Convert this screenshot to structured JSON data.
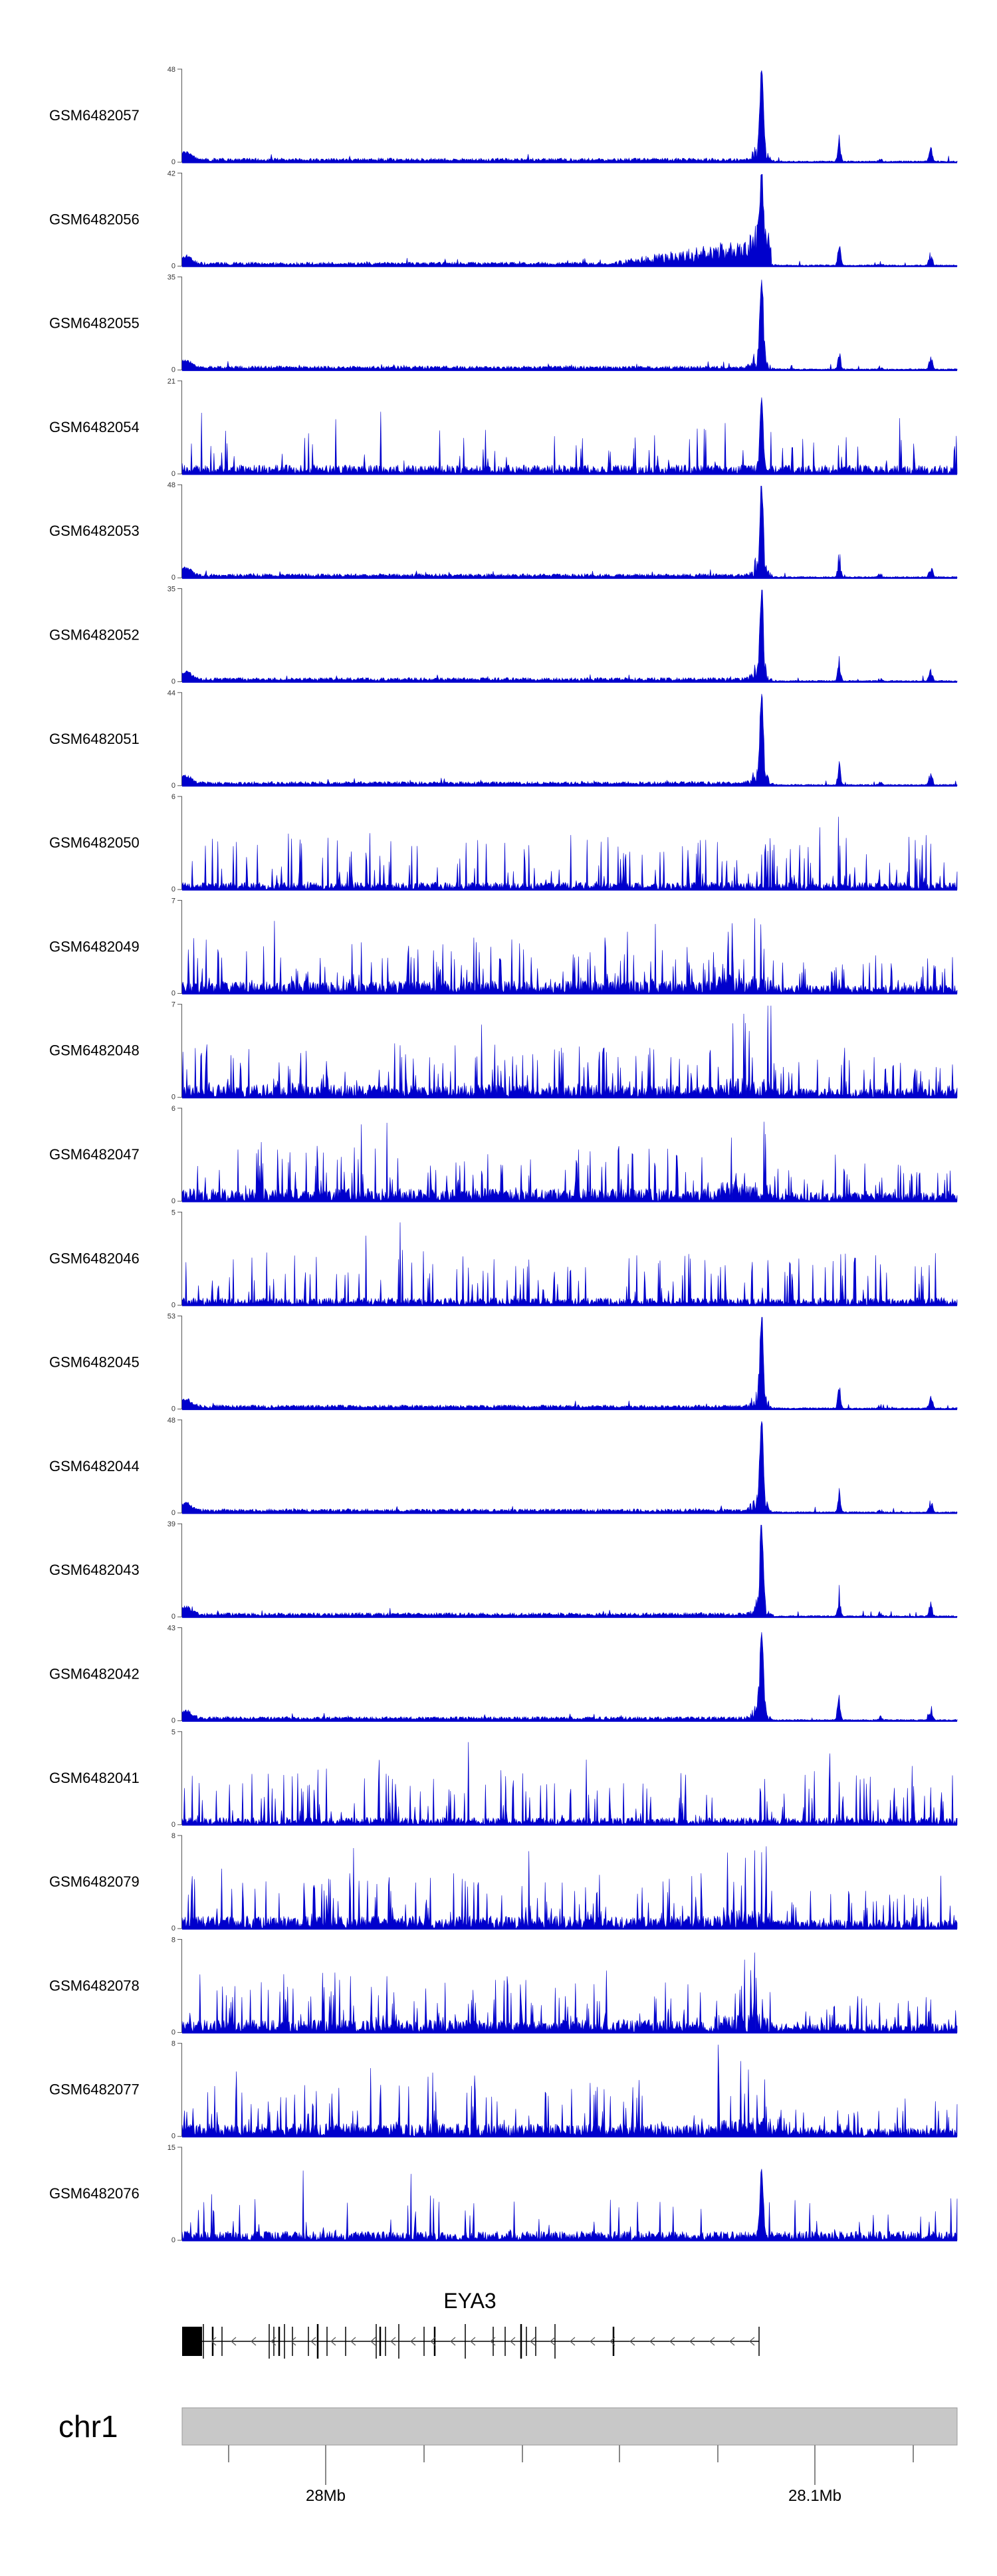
{
  "chart_data": {
    "type": "area",
    "track_color": "#0000cc",
    "ymin": 0,
    "tracks": [
      {
        "name": "GSM6482057",
        "ymax": 48,
        "profile": "peak_strong",
        "seed": 11
      },
      {
        "name": "GSM6482056",
        "ymax": 42,
        "profile": "peak_ramp",
        "seed": 12
      },
      {
        "name": "GSM6482055",
        "ymax": 35,
        "profile": "peak_strong",
        "seed": 13
      },
      {
        "name": "GSM6482054",
        "ymax": 21,
        "profile": "noisy_peak",
        "seed": 14
      },
      {
        "name": "GSM6482053",
        "ymax": 48,
        "profile": "peak_strong",
        "seed": 15
      },
      {
        "name": "GSM6482052",
        "ymax": 35,
        "profile": "peak_strong",
        "seed": 16
      },
      {
        "name": "GSM6482051",
        "ymax": 44,
        "profile": "peak_strong",
        "seed": 17
      },
      {
        "name": "GSM6482050",
        "ymax": 6,
        "profile": "noisy",
        "seed": 18
      },
      {
        "name": "GSM6482049",
        "ymax": 7,
        "profile": "noisy_dense",
        "seed": 19
      },
      {
        "name": "GSM6482048",
        "ymax": 7,
        "profile": "noisy_dense",
        "seed": 20
      },
      {
        "name": "GSM6482047",
        "ymax": 6,
        "profile": "noisy_dense",
        "seed": 21
      },
      {
        "name": "GSM6482046",
        "ymax": 5,
        "profile": "noisy",
        "seed": 22
      },
      {
        "name": "GSM6482045",
        "ymax": 53,
        "profile": "peak_strong",
        "seed": 23
      },
      {
        "name": "GSM6482044",
        "ymax": 48,
        "profile": "peak_strong",
        "seed": 24
      },
      {
        "name": "GSM6482043",
        "ymax": 39,
        "profile": "peak_strong",
        "seed": 25
      },
      {
        "name": "GSM6482042",
        "ymax": 43,
        "profile": "peak_strong",
        "seed": 26
      },
      {
        "name": "GSM6482041",
        "ymax": 5,
        "profile": "noisy",
        "seed": 27
      },
      {
        "name": "GSM6482079",
        "ymax": 8,
        "profile": "noisy_dense",
        "seed": 28
      },
      {
        "name": "GSM6482078",
        "ymax": 8,
        "profile": "noisy_dense",
        "seed": 29
      },
      {
        "name": "GSM6482077",
        "ymax": 8,
        "profile": "noisy_dense",
        "seed": 30
      },
      {
        "name": "GSM6482076",
        "ymax": 15,
        "profile": "noisy_peak",
        "seed": 31
      }
    ],
    "gene": {
      "name": "EYA3",
      "strand": "minus"
    },
    "chromosome": {
      "label": "chr1",
      "ideogram_color": "#c8c8c8",
      "tick_labels": [
        "28Mb",
        "28.1Mb"
      ]
    }
  }
}
